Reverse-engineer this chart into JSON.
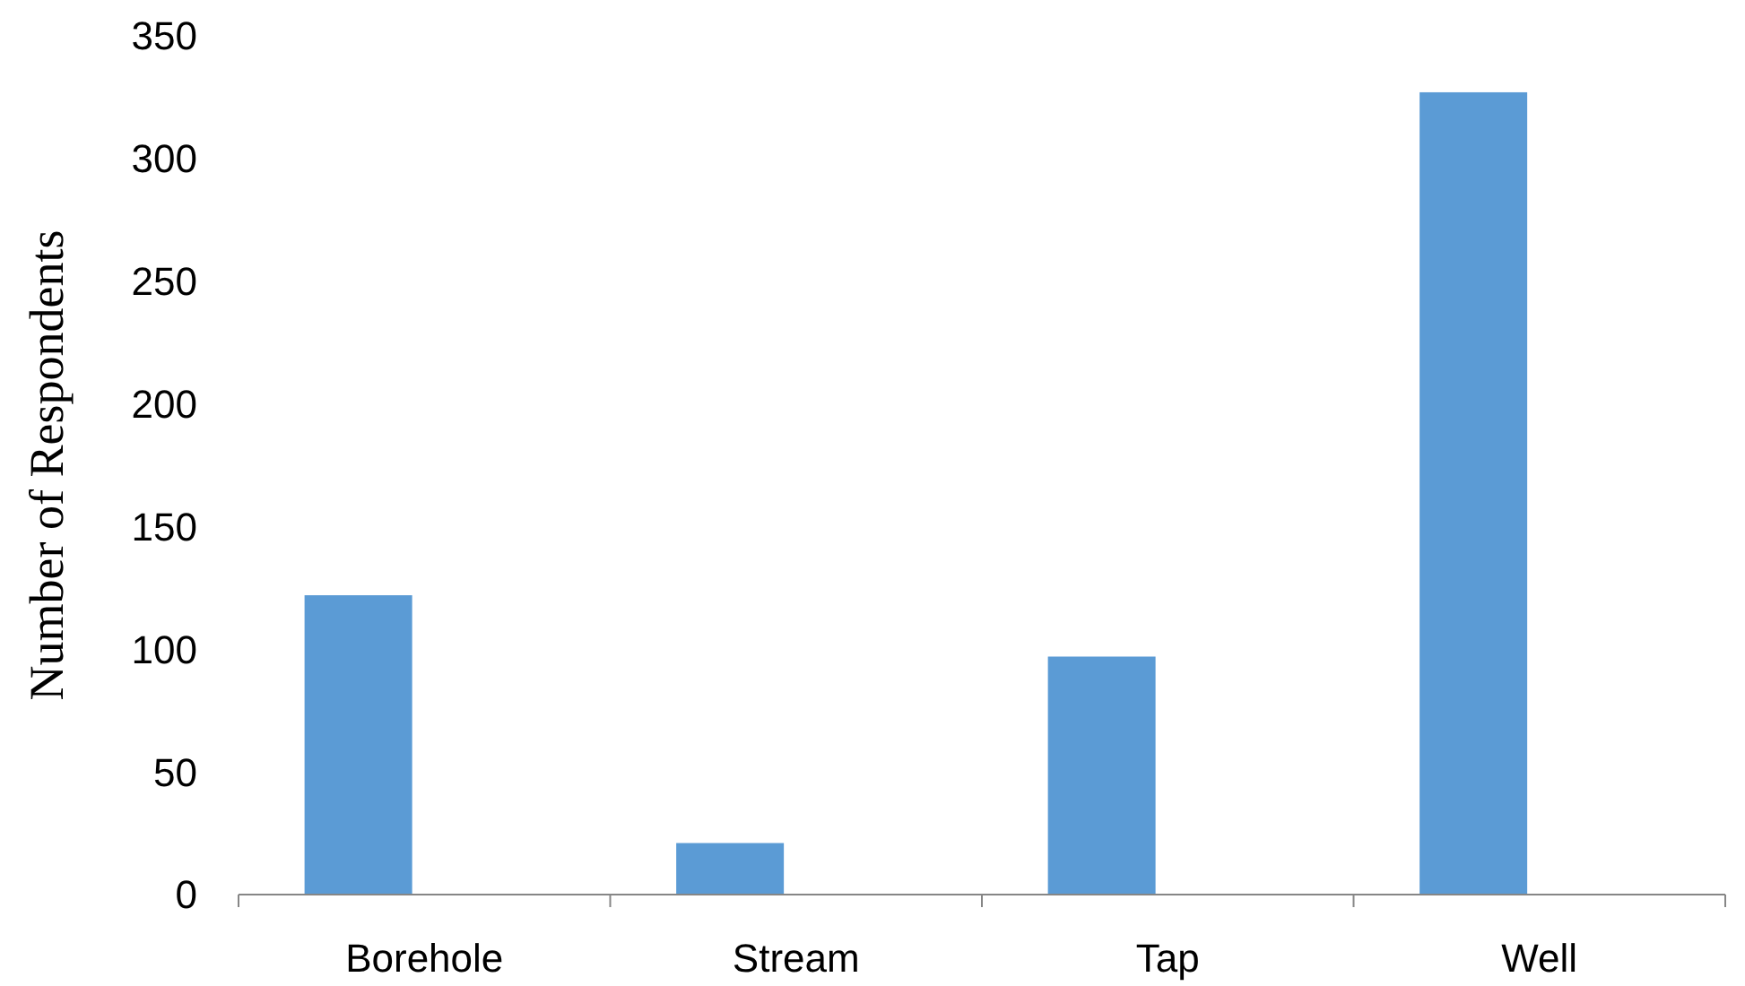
{
  "chart_data": {
    "type": "bar",
    "ylabel": "Number of Respondents",
    "categories": [
      "Borehole",
      "Stream",
      "Tap",
      "Well"
    ],
    "series": [
      {
        "color": "#5b9bd5",
        "values": [
          122,
          21,
          97,
          327
        ]
      }
    ],
    "ylim": [
      0,
      350
    ],
    "yticks": [
      0,
      50,
      100,
      150,
      200,
      250,
      300,
      350
    ],
    "grid": false
  }
}
